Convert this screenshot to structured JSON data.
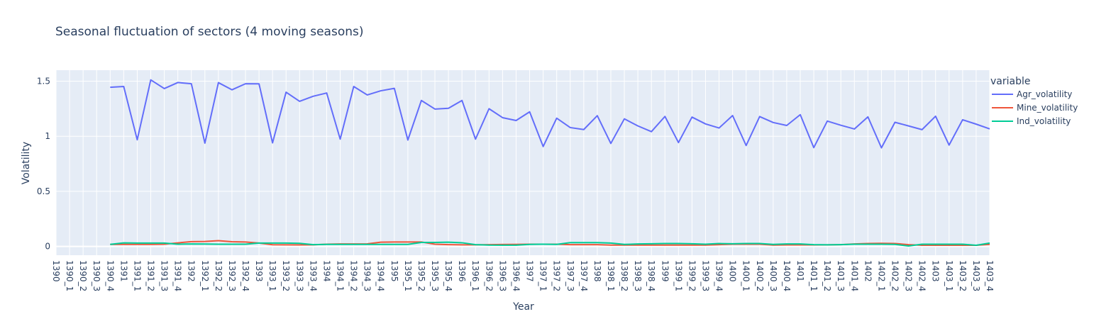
{
  "chart_data": {
    "type": "line",
    "title": "Seasonal fluctuation of sectors (4 moving seasons)",
    "xlabel": "Year",
    "ylabel": "Volatility",
    "legend_title": "variable",
    "legend_position": "right",
    "grid": true,
    "ylim": [
      -0.08,
      1.6
    ],
    "y_ticks": [
      0,
      0.5,
      1,
      1.5
    ],
    "y_tick_labels": [
      "0",
      "0.5",
      "1",
      "1.5"
    ],
    "x_tick_labels": [
      "1390",
      "1390_1",
      "1390_2",
      "1390_3",
      "1390_4",
      "1391",
      "1391_1",
      "1391_2",
      "1391_3",
      "1391_4",
      "1392",
      "1392_1",
      "1392_2",
      "1392_3",
      "1392_4",
      "1393",
      "1393_1",
      "1393_2",
      "1393_3",
      "1393_4",
      "1394",
      "1394_1",
      "1394_2",
      "1394_3",
      "1394_4",
      "1395",
      "1395_1",
      "1395_2",
      "1395_3",
      "1395_4",
      "1396",
      "1396_1",
      "1396_2",
      "1396_3",
      "1396_4",
      "1397",
      "1397_1",
      "1397_2",
      "1397_3",
      "1397_4",
      "1398",
      "1398_1",
      "1398_2",
      "1398_3",
      "1398_4",
      "1399",
      "1399_1",
      "1399_2",
      "1399_3",
      "1399_4",
      "1400",
      "1400_1",
      "1400_2",
      "1400_3",
      "1400_4",
      "1401",
      "1401_1",
      "1401_2",
      "1401_3",
      "1401_4",
      "1402",
      "1402_1",
      "1402_2",
      "1402_3",
      "1402_4",
      "1403",
      "1403_1",
      "1403_2",
      "1403_3",
      "1403_4"
    ],
    "x": [
      "1390",
      "1390_1",
      "1390_2",
      "1390_3",
      "1390_4",
      "1391",
      "1391_1",
      "1391_2",
      "1391_3",
      "1391_4",
      "1392",
      "1392_1",
      "1392_2",
      "1392_3",
      "1392_4",
      "1393",
      "1393_1",
      "1393_2",
      "1393_3",
      "1393_4",
      "1394",
      "1394_1",
      "1394_2",
      "1394_3",
      "1394_4",
      "1395",
      "1395_1",
      "1395_2",
      "1395_3",
      "1395_4",
      "1396",
      "1396_1",
      "1396_2",
      "1396_3",
      "1396_4",
      "1397",
      "1397_1",
      "1397_2",
      "1397_3",
      "1397_4",
      "1398",
      "1398_1",
      "1398_2",
      "1398_3",
      "1398_4",
      "1399",
      "1399_1",
      "1399_2",
      "1399_3",
      "1399_4",
      "1400",
      "1400_1",
      "1400_2",
      "1400_3",
      "1400_4",
      "1401",
      "1401_1",
      "1401_2",
      "1401_3",
      "1401_4",
      "1402",
      "1402_1",
      "1402_2",
      "1402_3",
      "1402_4",
      "1403",
      "1403_1",
      "1403_2",
      "1403_3",
      "1403_4"
    ],
    "series": [
      {
        "name": "Agr_volatility",
        "color": "#636efa",
        "values": [
          null,
          null,
          null,
          null,
          1.445,
          1.452,
          0.968,
          1.512,
          1.433,
          1.488,
          1.477,
          0.938,
          1.487,
          1.422,
          1.477,
          1.476,
          0.94,
          1.4,
          1.317,
          1.363,
          1.393,
          0.974,
          1.452,
          1.375,
          1.413,
          1.435,
          0.966,
          1.325,
          1.247,
          1.254,
          1.325,
          0.974,
          1.25,
          1.169,
          1.143,
          1.222,
          0.907,
          1.164,
          1.079,
          1.061,
          1.187,
          0.935,
          1.158,
          1.094,
          1.042,
          1.18,
          0.943,
          1.174,
          1.112,
          1.075,
          1.188,
          0.916,
          1.179,
          1.125,
          1.098,
          1.196,
          0.897,
          1.138,
          1.1,
          1.066,
          1.176,
          0.895,
          1.127,
          1.094,
          1.06,
          1.182,
          0.92,
          1.15,
          1.11,
          1.067
        ]
      },
      {
        "name": "Mine_volatility",
        "color": "#ef553b",
        "values": [
          null,
          null,
          null,
          null,
          0.018,
          0.018,
          0.018,
          0.018,
          0.02,
          0.032,
          0.043,
          0.045,
          0.052,
          0.042,
          0.04,
          0.03,
          0.015,
          0.014,
          0.013,
          0.014,
          0.02,
          0.022,
          0.022,
          0.023,
          0.038,
          0.04,
          0.04,
          0.04,
          0.02,
          0.016,
          0.014,
          0.014,
          0.016,
          0.017,
          0.018,
          0.02,
          0.02,
          0.02,
          0.016,
          0.016,
          0.016,
          0.012,
          0.012,
          0.012,
          0.012,
          0.012,
          0.012,
          0.012,
          0.012,
          0.016,
          0.02,
          0.02,
          0.02,
          0.012,
          0.013,
          0.013,
          0.013,
          0.014,
          0.016,
          0.022,
          0.026,
          0.028,
          0.026,
          0.016,
          0.01,
          0.01,
          0.01,
          0.01,
          0.01,
          0.018
        ]
      },
      {
        "name": "Ind_volatility",
        "color": "#00cc96",
        "values": [
          null,
          null,
          null,
          null,
          0.018,
          0.032,
          0.03,
          0.03,
          0.03,
          0.02,
          0.022,
          0.021,
          0.02,
          0.02,
          0.02,
          0.03,
          0.03,
          0.03,
          0.028,
          0.016,
          0.018,
          0.018,
          0.018,
          0.018,
          0.018,
          0.018,
          0.018,
          0.036,
          0.036,
          0.038,
          0.033,
          0.016,
          0.012,
          0.011,
          0.011,
          0.018,
          0.02,
          0.018,
          0.034,
          0.034,
          0.034,
          0.03,
          0.018,
          0.022,
          0.024,
          0.026,
          0.026,
          0.024,
          0.02,
          0.026,
          0.024,
          0.026,
          0.026,
          0.018,
          0.022,
          0.022,
          0.016,
          0.014,
          0.016,
          0.02,
          0.02,
          0.02,
          0.018,
          0.004,
          0.02,
          0.02,
          0.02,
          0.02,
          0.01,
          0.03
        ]
      }
    ]
  }
}
